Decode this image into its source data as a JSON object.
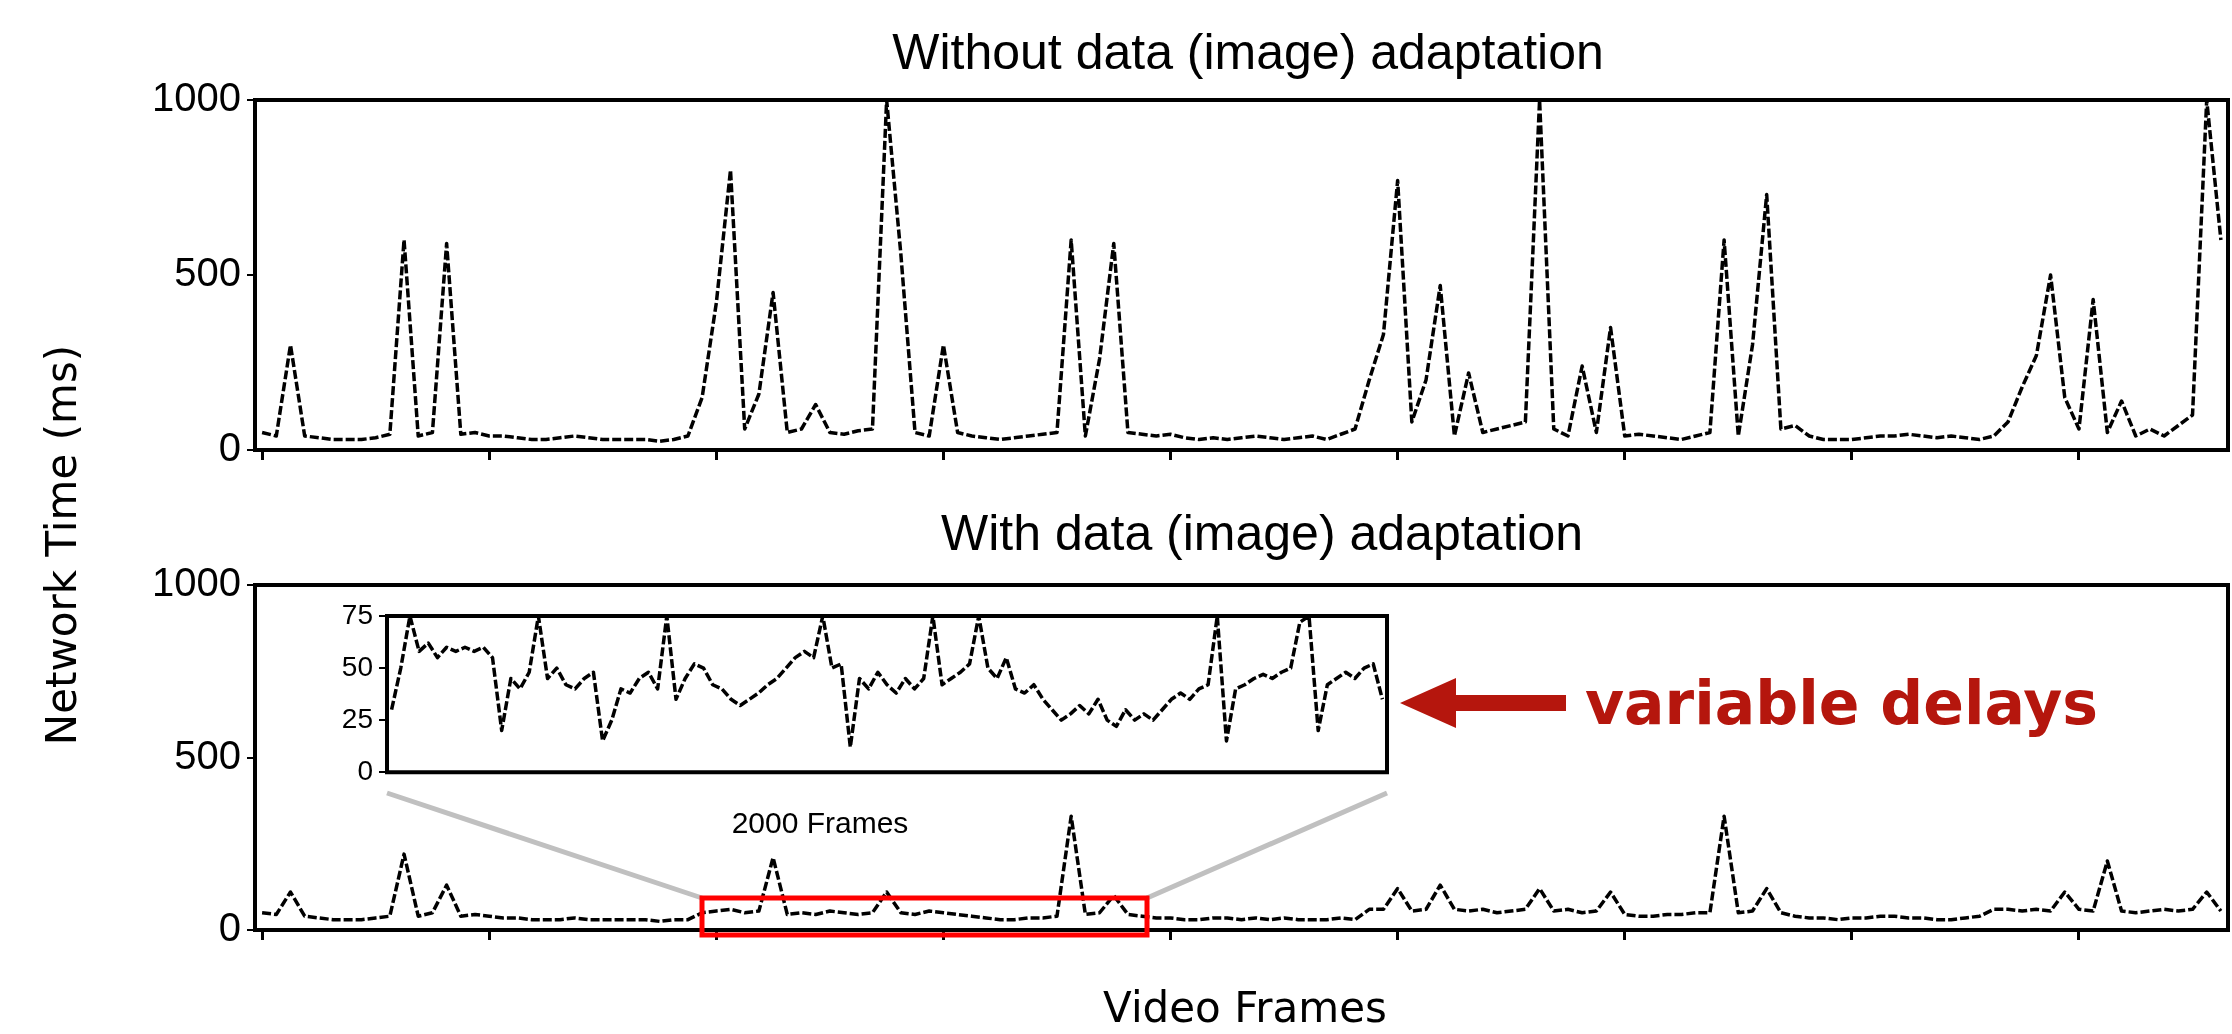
{
  "chart_data": [
    {
      "type": "line",
      "title": "Without data (image) adaptation",
      "ylabel": "Network Time (ms)",
      "tick_labels": "y",
      "line_style": "dashed",
      "marker": "none",
      "ylim": [
        0,
        1000
      ],
      "yticks": [
        0,
        500,
        1000
      ],
      "categories": [
        null,
        null,
        null,
        null,
        null,
        null,
        null,
        null,
        null,
        null,
        null,
        null,
        null,
        null,
        null,
        null,
        null,
        null,
        null,
        null,
        null,
        null,
        null,
        null,
        null,
        null,
        null,
        null,
        null,
        null,
        null,
        null,
        null,
        null,
        null,
        null,
        null,
        null,
        null,
        null,
        null,
        null,
        null,
        null,
        null,
        null,
        null,
        null,
        null,
        null,
        null,
        null,
        null,
        null,
        null,
        null,
        null,
        null,
        null,
        null,
        null,
        null,
        null,
        null,
        null,
        null,
        null,
        null,
        null,
        null,
        null,
        null,
        null,
        null,
        null,
        null,
        null,
        null,
        null,
        null,
        null,
        null,
        null,
        null,
        null,
        null,
        null,
        null,
        null,
        null,
        null,
        null,
        null,
        null,
        null,
        null,
        null,
        null,
        null,
        null,
        null,
        null,
        null,
        null,
        null,
        null,
        null,
        null,
        null,
        null,
        null,
        null,
        null,
        null,
        null,
        null,
        null,
        null,
        null,
        null,
        null,
        null,
        null,
        null,
        null,
        null,
        null,
        null,
        null,
        null,
        null,
        null,
        null,
        null,
        null,
        null,
        null,
        null,
        null
      ],
      "series": [
        {
          "color": "#000000",
          "values": [
            50,
            40,
            300,
            40,
            35,
            30,
            30,
            30,
            35,
            45,
            600,
            40,
            50,
            590,
            45,
            50,
            40,
            40,
            35,
            30,
            30,
            35,
            40,
            35,
            30,
            30,
            30,
            30,
            25,
            30,
            40,
            150,
            420,
            800,
            60,
            160,
            450,
            50,
            60,
            130,
            50,
            45,
            55,
            60,
            1000,
            560,
            50,
            40,
            300,
            50,
            40,
            35,
            30,
            35,
            40,
            45,
            50,
            600,
            40,
            260,
            590,
            50,
            45,
            40,
            45,
            35,
            30,
            35,
            30,
            35,
            40,
            35,
            30,
            35,
            40,
            30,
            45,
            60,
            200,
            330,
            770,
            80,
            200,
            470,
            40,
            220,
            50,
            60,
            70,
            80,
            1000,
            60,
            40,
            240,
            50,
            350,
            40,
            45,
            40,
            35,
            30,
            40,
            50,
            600,
            40,
            300,
            730,
            60,
            70,
            40,
            30,
            30,
            30,
            35,
            40,
            40,
            45,
            40,
            35,
            40,
            35,
            30,
            40,
            80,
            180,
            270,
            500,
            150,
            60,
            430,
            50,
            140,
            40,
            60,
            40,
            70,
            100,
            1000,
            600
          ]
        }
      ]
    },
    {
      "type": "line",
      "title": "With data (image) adaptation",
      "xlabel": "Video Frames",
      "tick_labels": "y",
      "line_style": "dashed",
      "marker": "none",
      "ylim": [
        0,
        1000
      ],
      "yticks": [
        0,
        500,
        1000
      ],
      "categories": [
        null,
        null,
        null,
        null,
        null,
        null,
        null,
        null,
        null,
        null,
        null,
        null,
        null,
        null,
        null,
        null,
        null,
        null,
        null,
        null,
        null,
        null,
        null,
        null,
        null,
        null,
        null,
        null,
        null,
        null,
        null,
        null,
        null,
        null,
        null,
        null,
        null,
        null,
        null,
        null,
        null,
        null,
        null,
        null,
        null,
        null,
        null,
        null,
        null,
        null,
        null,
        null,
        null,
        null,
        null,
        null,
        null,
        null,
        null,
        null,
        null,
        null,
        null,
        null,
        null,
        null,
        null,
        null,
        null,
        null,
        null,
        null,
        null,
        null,
        null,
        null,
        null,
        null,
        null,
        null,
        null,
        null,
        null,
        null,
        null,
        null,
        null,
        null,
        null,
        null,
        null,
        null,
        null,
        null,
        null,
        null,
        null,
        null,
        null,
        null,
        null,
        null,
        null,
        null,
        null,
        null,
        null,
        null,
        null,
        null,
        null,
        null,
        null,
        null,
        null,
        null,
        null,
        null,
        null,
        null,
        null,
        null,
        null,
        null,
        null,
        null,
        null,
        null,
        null,
        null,
        null,
        null,
        null,
        null,
        null,
        null,
        null,
        null,
        null
      ],
      "series": [
        {
          "color": "#000000",
          "values": [
            50,
            45,
            110,
            40,
            35,
            30,
            30,
            30,
            35,
            40,
            220,
            40,
            50,
            130,
            40,
            45,
            40,
            35,
            35,
            30,
            30,
            30,
            35,
            30,
            30,
            30,
            30,
            30,
            25,
            30,
            30,
            50,
            55,
            60,
            50,
            55,
            210,
            45,
            50,
            45,
            55,
            50,
            45,
            50,
            110,
            50,
            45,
            55,
            50,
            45,
            40,
            35,
            30,
            30,
            35,
            35,
            40,
            330,
            45,
            50,
            100,
            45,
            40,
            35,
            35,
            30,
            30,
            35,
            35,
            30,
            35,
            30,
            35,
            30,
            30,
            30,
            35,
            30,
            60,
            60,
            120,
            55,
            60,
            130,
            60,
            55,
            60,
            50,
            55,
            60,
            120,
            55,
            60,
            50,
            55,
            110,
            45,
            40,
            40,
            45,
            45,
            50,
            50,
            330,
            50,
            55,
            120,
            50,
            40,
            35,
            35,
            30,
            35,
            35,
            40,
            40,
            35,
            35,
            30,
            30,
            35,
            40,
            60,
            60,
            55,
            60,
            55,
            110,
            60,
            55,
            200,
            55,
            50,
            55,
            60,
            55,
            60,
            110,
            55
          ]
        }
      ]
    },
    {
      "type": "line",
      "xlabel": "2000 Frames",
      "annotations": [
        "variable delays"
      ],
      "tick_labels": "y",
      "line_style": "dashed",
      "marker": "none",
      "ylim": [
        0,
        75
      ],
      "yticks": [
        0,
        25,
        50,
        75
      ],
      "categories": [
        null,
        null,
        null,
        null,
        null,
        null,
        null,
        null,
        null,
        null,
        null,
        null,
        null,
        null,
        null,
        null,
        null,
        null,
        null,
        null,
        null,
        null,
        null,
        null,
        null,
        null,
        null,
        null,
        null,
        null,
        null,
        null,
        null,
        null,
        null,
        null,
        null,
        null,
        null,
        null,
        null,
        null,
        null,
        null,
        null,
        null,
        null,
        null,
        null,
        null,
        null,
        null,
        null,
        null,
        null,
        null,
        null,
        null,
        null,
        null,
        null,
        null,
        null,
        null,
        null,
        null,
        null,
        null,
        null,
        null,
        null,
        null,
        null,
        null,
        null,
        null,
        null,
        null,
        null,
        null,
        null,
        null,
        null,
        null,
        null,
        null,
        null,
        null,
        null,
        null,
        null,
        null,
        null,
        null,
        null,
        null,
        null,
        null,
        null,
        null,
        null,
        null,
        null,
        null,
        null,
        null,
        null,
        null,
        null
      ],
      "series": [
        {
          "color": "#000000",
          "values": [
            30,
            50,
            75,
            58,
            62,
            55,
            60,
            58,
            60,
            58,
            60,
            55,
            20,
            45,
            40,
            48,
            75,
            45,
            50,
            42,
            40,
            45,
            48,
            15,
            25,
            40,
            38,
            45,
            48,
            40,
            75,
            35,
            45,
            52,
            50,
            42,
            40,
            35,
            32,
            35,
            38,
            42,
            45,
            50,
            55,
            58,
            55,
            75,
            50,
            52,
            12,
            45,
            40,
            48,
            42,
            38,
            45,
            40,
            45,
            75,
            42,
            45,
            48,
            52,
            75,
            50,
            45,
            55,
            40,
            38,
            42,
            35,
            30,
            25,
            28,
            32,
            28,
            35,
            25,
            22,
            30,
            25,
            28,
            25,
            30,
            35,
            38,
            35,
            40,
            42,
            75,
            15,
            40,
            42,
            45,
            47,
            45,
            48,
            50,
            72,
            75,
            20,
            42,
            45,
            48,
            45,
            50,
            52,
            35
          ]
        }
      ]
    }
  ]
}
